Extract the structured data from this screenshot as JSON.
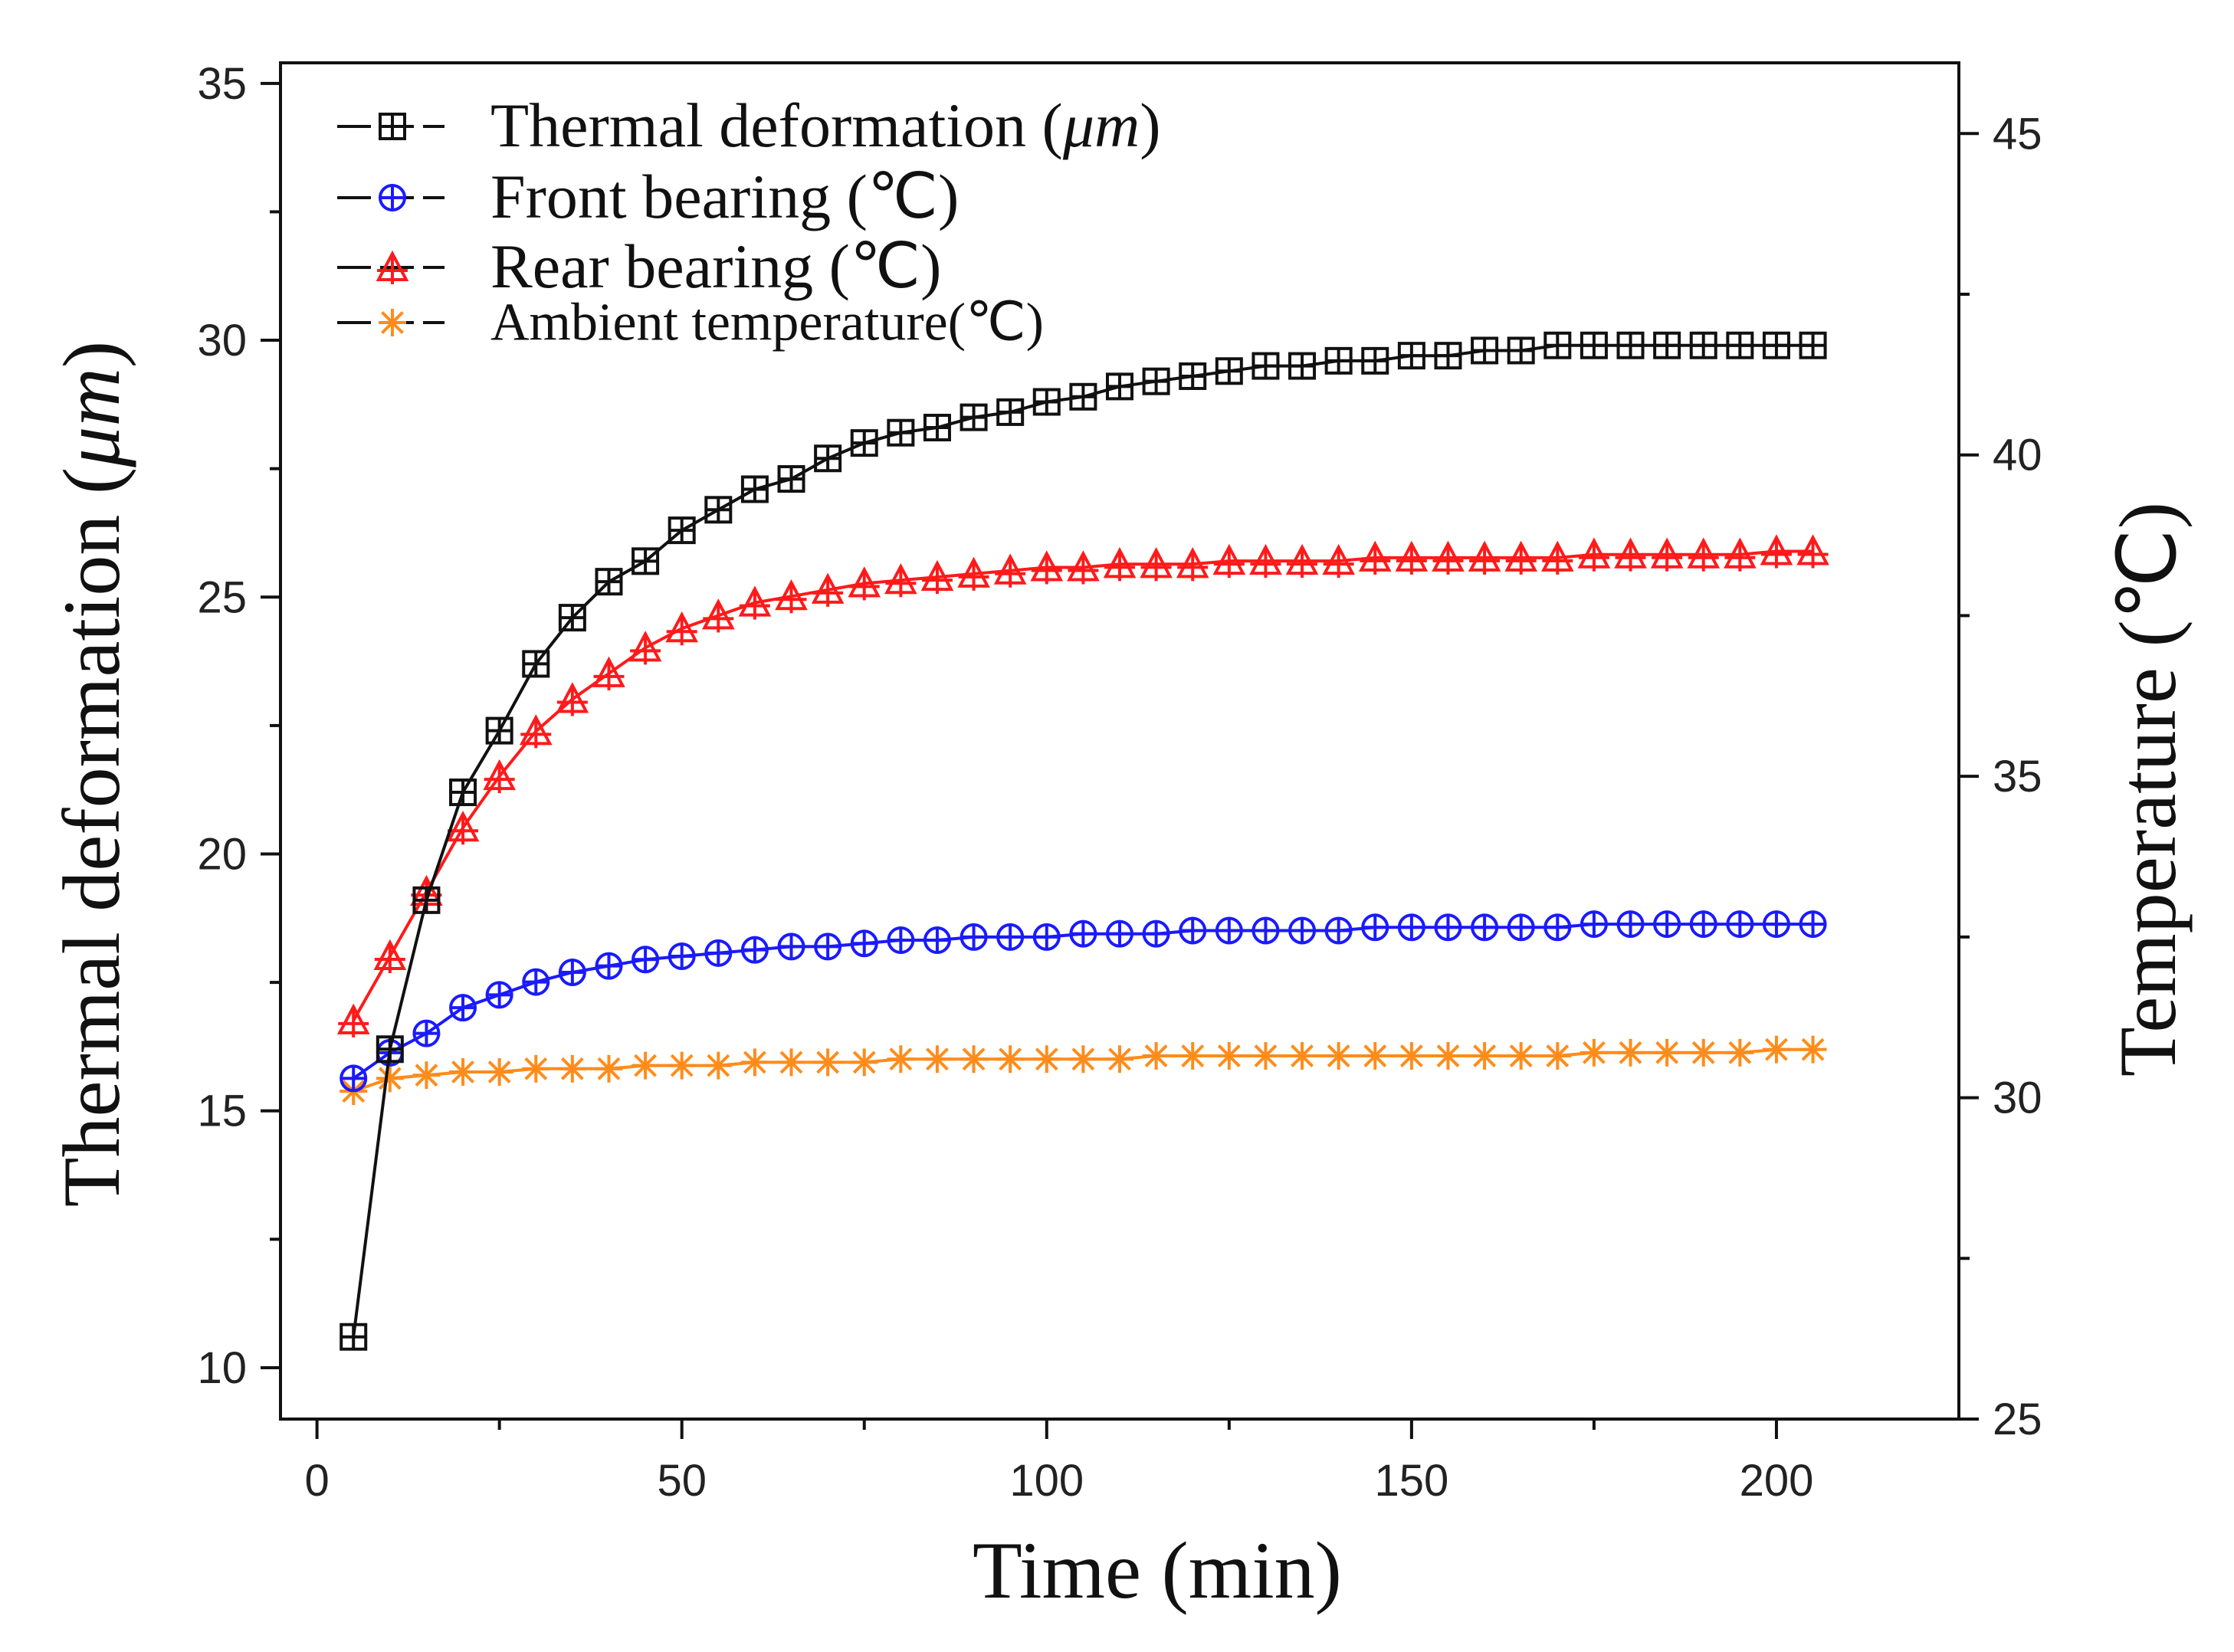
{
  "chart_data": {
    "type": "line",
    "xlabel": "Time (min)",
    "ylabel_left": "Thermal deformation (μm)",
    "ylabel_right": "Temperature (℃)",
    "xlim": [
      -5,
      225
    ],
    "ylim_left": [
      9,
      35.4
    ],
    "ylim_right": [
      25,
      46.1
    ],
    "xticks": [
      "0",
      "50",
      "100",
      "150",
      "200"
    ],
    "yticks_left": [
      "10",
      "15",
      "20",
      "25",
      "30",
      "35"
    ],
    "yticks_right": [
      "25",
      "30",
      "35",
      "40",
      "45"
    ],
    "x": [
      5,
      10,
      15,
      20,
      25,
      30,
      35,
      40,
      45,
      50,
      55,
      60,
      65,
      70,
      75,
      80,
      85,
      90,
      95,
      100,
      105,
      110,
      115,
      120,
      125,
      130,
      135,
      140,
      145,
      150,
      155,
      160,
      165,
      170,
      175,
      180,
      185,
      190,
      195,
      200,
      205
    ],
    "series": [
      {
        "name": "Thermal deformation (μm)",
        "axis": "left",
        "color": "#111111",
        "marker": "square-plus",
        "values": [
          10.6,
          16.2,
          19.1,
          21.2,
          22.4,
          23.7,
          24.6,
          25.3,
          25.7,
          26.3,
          26.7,
          27.1,
          27.3,
          27.7,
          28.0,
          28.2,
          28.3,
          28.5,
          28.6,
          28.8,
          28.9,
          29.1,
          29.2,
          29.3,
          29.4,
          29.5,
          29.5,
          29.6,
          29.6,
          29.7,
          29.7,
          29.8,
          29.8,
          29.9,
          29.9,
          29.9,
          29.9,
          29.9,
          29.9,
          29.9,
          29.9
        ]
      },
      {
        "name": "Front bearing (℃)",
        "axis": "right",
        "color": "#1a1aff",
        "marker": "circle-plus",
        "values": [
          30.3,
          30.7,
          31.0,
          31.4,
          31.6,
          31.8,
          31.95,
          32.05,
          32.15,
          32.2,
          32.25,
          32.3,
          32.35,
          32.35,
          32.4,
          32.45,
          32.45,
          32.5,
          32.5,
          32.5,
          32.55,
          32.55,
          32.55,
          32.6,
          32.6,
          32.6,
          32.6,
          32.6,
          32.65,
          32.65,
          32.65,
          32.65,
          32.65,
          32.65,
          32.7,
          32.7,
          32.7,
          32.7,
          32.7,
          32.7,
          32.7
        ]
      },
      {
        "name": "Rear bearing (℃)",
        "axis": "right",
        "color": "#ff1a1a",
        "marker": "triangle-plus",
        "values": [
          31.2,
          32.2,
          33.2,
          34.2,
          35.0,
          35.7,
          36.2,
          36.6,
          37.0,
          37.3,
          37.5,
          37.7,
          37.8,
          37.9,
          38.0,
          38.05,
          38.1,
          38.15,
          38.2,
          38.25,
          38.25,
          38.3,
          38.3,
          38.3,
          38.35,
          38.35,
          38.35,
          38.35,
          38.4,
          38.4,
          38.4,
          38.4,
          38.4,
          38.4,
          38.45,
          38.45,
          38.45,
          38.45,
          38.45,
          38.5,
          38.5
        ]
      },
      {
        "name": "Ambient temperature(℃)",
        "axis": "right",
        "color": "#ff8c1a",
        "marker": "asterisk",
        "values": [
          30.1,
          30.3,
          30.35,
          30.4,
          30.4,
          30.45,
          30.45,
          30.45,
          30.5,
          30.5,
          30.5,
          30.55,
          30.55,
          30.55,
          30.55,
          30.6,
          30.6,
          30.6,
          30.6,
          30.6,
          30.6,
          30.6,
          30.65,
          30.65,
          30.65,
          30.65,
          30.65,
          30.65,
          30.65,
          30.65,
          30.65,
          30.65,
          30.65,
          30.65,
          30.7,
          30.7,
          30.7,
          30.7,
          30.7,
          30.75,
          30.75
        ]
      }
    ],
    "legend": {
      "position": "top-left",
      "entries": [
        {
          "label_text": "Thermal deformation ",
          "label_italic": "μm",
          "label_close": ")",
          "label_open": "("
        },
        {
          "label_text": "Front bearing (℃)"
        },
        {
          "label_text": "Rear bearing (℃)"
        },
        {
          "label_text": "Ambient temperature(℃)"
        }
      ]
    },
    "ylabel_left_text": "Thermal deformation (",
    "ylabel_left_italic": "μm",
    "ylabel_left_close": ")"
  }
}
